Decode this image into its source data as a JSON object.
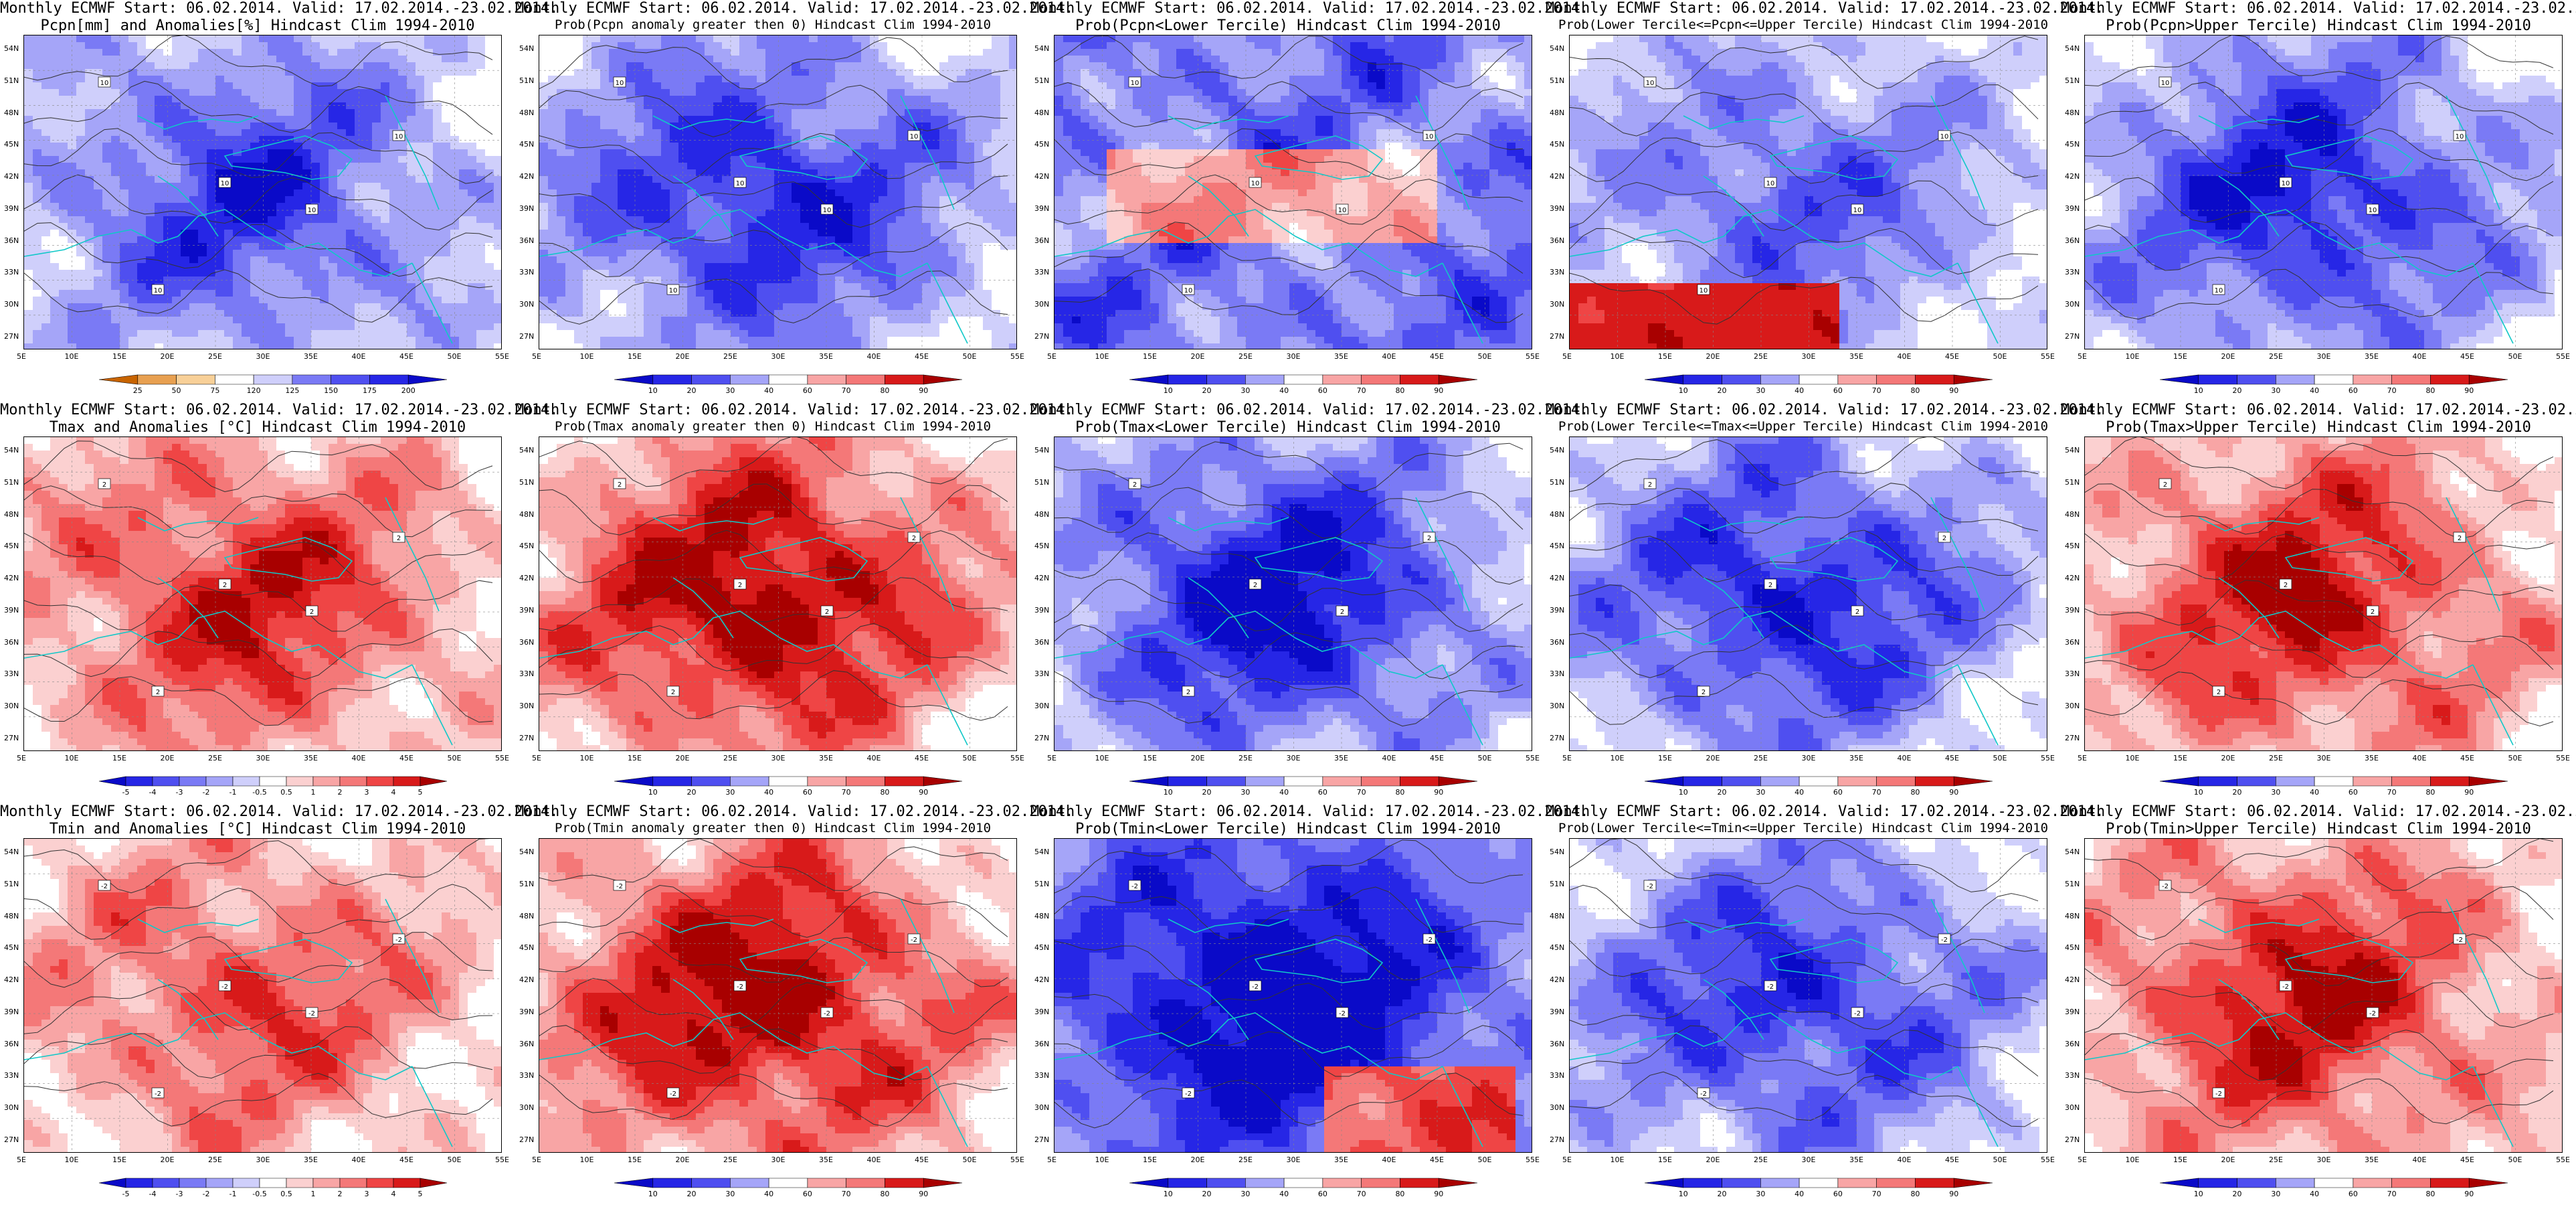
{
  "header_line1": "Monthly ECMWF Start: 06.02.2014. Valid: 17.02.2014.-23.02.2014.",
  "lat_labels": [
    "54N",
    "51N",
    "48N",
    "45N",
    "42N",
    "39N",
    "36N",
    "33N",
    "30N",
    "27N"
  ],
  "lon_labels": [
    "5E",
    "10E",
    "15E",
    "20E",
    "25E",
    "30E",
    "35E",
    "40E",
    "45E",
    "50E",
    "55E"
  ],
  "colorbars": {
    "pcpn_anom": [
      "25",
      "50",
      "75",
      "120",
      "125",
      "150",
      "175",
      "200"
    ],
    "temp_anom": [
      "-5",
      "-4",
      "-3",
      "-2",
      "-1",
      "-0.5",
      "0.5",
      "1",
      "2",
      "3",
      "4",
      "5"
    ],
    "prob": [
      "10",
      "20",
      "30",
      "40",
      "60",
      "70",
      "80",
      "90"
    ]
  },
  "palette": {
    "blue": [
      "#0a0ac8",
      "#2626e6",
      "#4f4ff0",
      "#7a7af5",
      "#a5a5f8",
      "#cfcffb",
      "#ffffff"
    ],
    "red": [
      "#ffffff",
      "#fbd0d0",
      "#f8a5a5",
      "#f47878",
      "#ef4545",
      "#d81a1a",
      "#a80000"
    ],
    "coast": "#10c8c8",
    "contour": "#333333"
  },
  "panels": [
    {
      "id": "r1c1",
      "line2": "Pcpn[mm] and Anomalies[%] Hindcast Clim 1994-2010",
      "cbar": "pcpn_anom",
      "field": "blue",
      "level": 0.75,
      "cmark": "10"
    },
    {
      "id": "r1c2",
      "line2": "Prob(Pcpn anomaly greater then 0) Hindcast Clim 1994-2010",
      "cbar": "prob",
      "field": "blue",
      "level": 0.85,
      "cmark": "10"
    },
    {
      "id": "r1c3",
      "line2": "Prob(Pcpn<Lower Tercile) Hindcast Clim 1994-2010",
      "cbar": "prob",
      "field": "mix_red_center",
      "level": 0.5,
      "cmark": "10"
    },
    {
      "id": "r1c4",
      "line2": "Prob(Lower Tercile<=Pcpn<=Upper Tercile) Hindcast Clim 1994-2010",
      "cbar": "prob",
      "field": "blue_red_south",
      "level": 0.7,
      "cmark": "10"
    },
    {
      "id": "r1c5",
      "line2": "Prob(Pcpn>Upper Tercile) Hindcast Clim 1994-2010",
      "cbar": "prob",
      "field": "blue",
      "level": 0.85,
      "cmark": "10"
    },
    {
      "id": "r2c1",
      "line2": "Tmax and Anomalies [°C] Hindcast Clim 1994-2010",
      "cbar": "temp_anom",
      "field": "red",
      "level": 0.75,
      "cmark": "2"
    },
    {
      "id": "r2c2",
      "line2": "Prob(Tmax anomaly greater then 0) Hindcast Clim 1994-2010",
      "cbar": "prob",
      "field": "red",
      "level": 0.95,
      "cmark": "2"
    },
    {
      "id": "r2c3",
      "line2": "Prob(Tmax<Lower Tercile) Hindcast Clim 1994-2010",
      "cbar": "prob",
      "field": "blue",
      "level": 0.97,
      "cmark": "2"
    },
    {
      "id": "r2c4",
      "line2": "Prob(Lower Tercile<=Tmax<=Upper Tercile) Hindcast Clim 1994-2010",
      "cbar": "prob",
      "field": "blue",
      "level": 0.85,
      "cmark": "2"
    },
    {
      "id": "r2c5",
      "line2": "Prob(Tmax>Upper Tercile) Hindcast Clim 1994-2010",
      "cbar": "prob",
      "field": "red",
      "level": 0.8,
      "cmark": "2"
    },
    {
      "id": "r3c1",
      "line2": "Tmin and Anomalies [°C] Hindcast Clim 1994-2010",
      "cbar": "temp_anom",
      "field": "red",
      "level": 0.6,
      "cmark": "-2"
    },
    {
      "id": "r3c2",
      "line2": "Prob(Tmin anomaly greater then 0) Hindcast Clim 1994-2010",
      "cbar": "prob",
      "field": "red",
      "level": 0.95,
      "cmark": "-2"
    },
    {
      "id": "r3c3",
      "line2": "Prob(Tmin<Lower Tercile) Hindcast Clim 1994-2010",
      "cbar": "prob",
      "field": "blue_red_se",
      "level": 0.95,
      "cmark": "-2"
    },
    {
      "id": "r3c4",
      "line2": "Prob(Lower Tercile<=Tmin<=Upper Tercile) Hindcast Clim 1994-2010",
      "cbar": "prob",
      "field": "blue",
      "level": 0.8,
      "cmark": "-2"
    },
    {
      "id": "r3c5",
      "line2": "Prob(Tmin>Upper Tercile) Hindcast Clim 1994-2010",
      "cbar": "prob",
      "field": "red",
      "level": 0.8,
      "cmark": "-2"
    }
  ]
}
